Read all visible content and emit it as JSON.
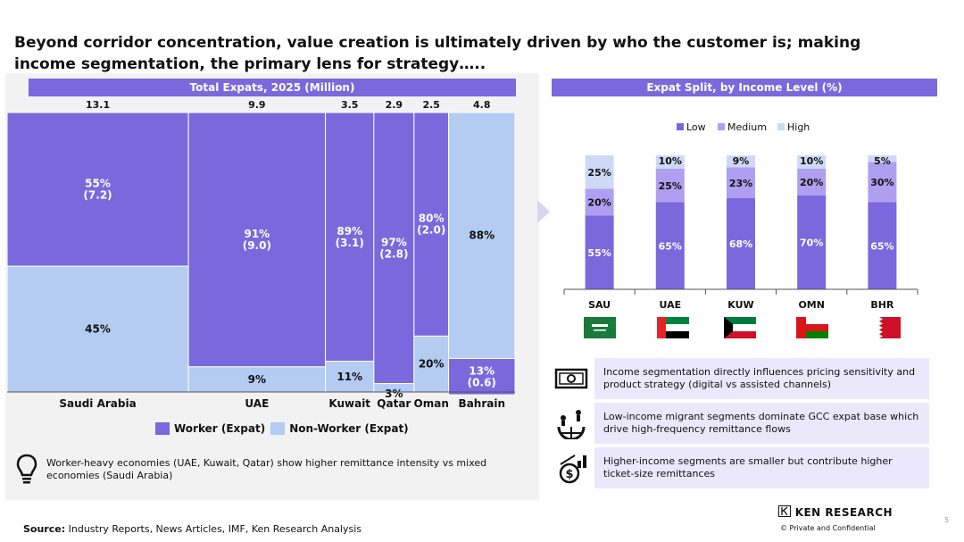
{
  "title": "Beyond corridor concentration, value creation is ultimately driven by who the customer is; making income segmentation, the primary lens for strategy…..",
  "left_panel": {
    "banner": "Total Expats, 2025 (Million)",
    "legend": {
      "worker": "Worker (Expat)",
      "nonworker": "Non-Worker (Expat)"
    },
    "note": "Worker-heavy economies (UAE, Kuwait, Qatar) show higher remittance intensity vs mixed economies (Saudi Arabia)"
  },
  "right_panel": {
    "banner": "Expat Split, by Income Level (%)",
    "info": [
      "Income segmentation directly influences pricing sensitivity and product strategy (digital vs assisted channels)",
      "Low-income migrant segments dominate GCC expat base which drive high-frequency remittance flows",
      "Higher-income segments are smaller but contribute higher ticket-size remittances"
    ]
  },
  "chart_data": [
    {
      "type": "bar",
      "subtype": "marimekko",
      "title": "Total Expats, 2025 (Million)",
      "categories": [
        "Saudi Arabia",
        "UAE",
        "Kuwait",
        "Qatar",
        "Oman",
        "Bahrain"
      ],
      "totals": [
        13.1,
        9.9,
        3.5,
        2.9,
        2.5,
        4.8
      ],
      "total_labels": [
        "13.1",
        "9.9",
        "3.5",
        "2.9",
        "2.5",
        "4.8"
      ],
      "series": [
        {
          "name": "Worker (Expat)",
          "values": [
            55,
            91,
            89,
            97,
            80,
            13
          ],
          "labels": [
            "55%\n(7.2)",
            "91%\n(9.0)",
            "89%\n(3.1)",
            "97%\n(2.8)",
            "80%\n(2.0)",
            "13%\n(0.6)"
          ],
          "color": "#7b68dd"
        },
        {
          "name": "Non-Worker (Expat)",
          "values": [
            45,
            9,
            11,
            3,
            20,
            88
          ],
          "labels": [
            "45%",
            "9%",
            "11%",
            "3%",
            "20%",
            "88%"
          ],
          "color": "#b4cbf2"
        }
      ],
      "stack_order": [
        [
          "worker",
          "nonworker"
        ],
        [
          "worker",
          "nonworker"
        ],
        [
          "worker",
          "nonworker"
        ],
        [
          "worker",
          "nonworker"
        ],
        [
          "worker",
          "nonworker"
        ],
        [
          "nonworker",
          "worker"
        ]
      ]
    },
    {
      "type": "bar",
      "subtype": "stacked",
      "title": "Expat Split, by Income Level (%)",
      "categories": [
        "SAU",
        "UAE",
        "KUW",
        "OMN",
        "BHR"
      ],
      "legend_position": "top",
      "series": [
        {
          "name": "Low",
          "values": [
            55,
            65,
            68,
            70,
            65
          ],
          "color": "#7b68dd"
        },
        {
          "name": "Medium",
          "values": [
            20,
            25,
            23,
            20,
            30
          ],
          "color": "#ae9ff0"
        },
        {
          "name": "High",
          "values": [
            25,
            10,
            9,
            10,
            5
          ],
          "color": "#cdd9f6"
        }
      ]
    }
  ],
  "source": {
    "label": "Source:",
    "text": "Industry Reports, News Articles, IMF, Ken Research Analysis"
  },
  "brand": "KEN RESEARCH",
  "confidential": "©  Private and Confidential",
  "page_number": "5"
}
